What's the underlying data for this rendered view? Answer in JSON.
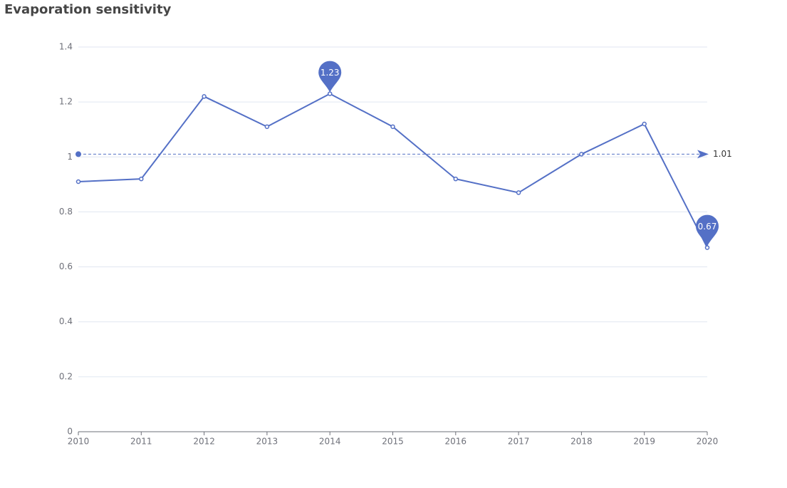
{
  "chart_data": {
    "type": "line",
    "title": "Evaporation sensitivity",
    "categories": [
      "2010",
      "2011",
      "2012",
      "2013",
      "2014",
      "2015",
      "2016",
      "2017",
      "2018",
      "2019",
      "2020"
    ],
    "series": [
      {
        "color": "#5470c6",
        "values": [
          0.91,
          0.92,
          1.22,
          1.11,
          1.23,
          1.11,
          0.92,
          0.87,
          1.01,
          1.12,
          0.67
        ]
      }
    ],
    "ylim": [
      0,
      1.4
    ],
    "yticks": [
      0,
      0.2,
      0.4,
      0.6,
      0.8,
      1,
      1.2,
      1.4
    ],
    "grid": true,
    "max": 1.23,
    "min": 0.67,
    "average": 1.01
  }
}
